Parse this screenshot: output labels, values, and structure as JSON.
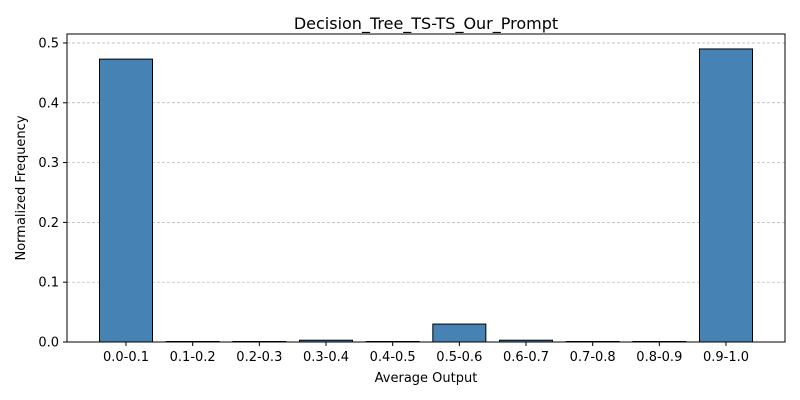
{
  "chart_data": {
    "type": "bar",
    "title": "Decision_Tree_TS-TS_Our_Prompt",
    "xlabel": "Average Output",
    "ylabel": "Normalized Frequency",
    "categories": [
      "0.0-0.1",
      "0.1-0.2",
      "0.2-0.3",
      "0.3-0.4",
      "0.4-0.5",
      "0.5-0.6",
      "0.6-0.7",
      "0.7-0.8",
      "0.8-0.9",
      "0.9-1.0"
    ],
    "values": [
      0.473,
      0.0,
      0.0,
      0.003,
      0.0,
      0.03,
      0.003,
      0.0,
      0.0,
      0.49
    ],
    "ylim": [
      0,
      0.515
    ],
    "yticks": [
      "0.0",
      "0.1",
      "0.2",
      "0.3",
      "0.4",
      "0.5"
    ],
    "grid": "y-axis dashed",
    "colors": {
      "bar_fill": "#4682b4",
      "bar_edge": "#000000"
    }
  }
}
